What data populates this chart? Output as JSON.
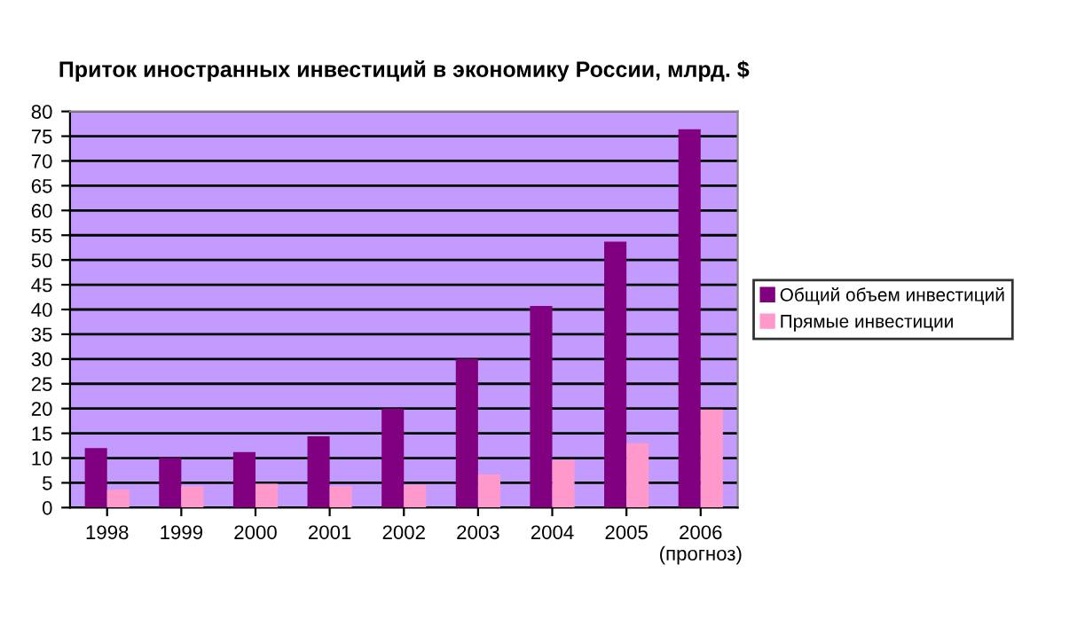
{
  "chart_data": {
    "type": "bar",
    "title": "Приток иностранных инвестиций в экономику России, млрд. $",
    "categories": [
      "1998",
      "1999",
      "2000",
      "2001",
      "2002",
      "2003",
      "2004",
      "2005",
      "2006\n(прогноз)"
    ],
    "series": [
      {
        "name": "Общий объем инвестиций",
        "color": "#800080",
        "values": [
          12.0,
          10.0,
          11.2,
          14.4,
          20.0,
          30.0,
          40.7,
          53.7,
          76.4
        ]
      },
      {
        "name": "Прямые инвестиции",
        "color": "#ff99cc",
        "values": [
          3.6,
          4.3,
          4.8,
          4.3,
          4.6,
          6.7,
          9.6,
          13.0,
          19.8
        ]
      }
    ],
    "ylim": [
      0,
      80
    ],
    "yticks": [
      0,
      5,
      10,
      15,
      20,
      25,
      30,
      35,
      40,
      45,
      50,
      55,
      60,
      65,
      70,
      75,
      80
    ],
    "grid": "y",
    "legend": "right"
  }
}
